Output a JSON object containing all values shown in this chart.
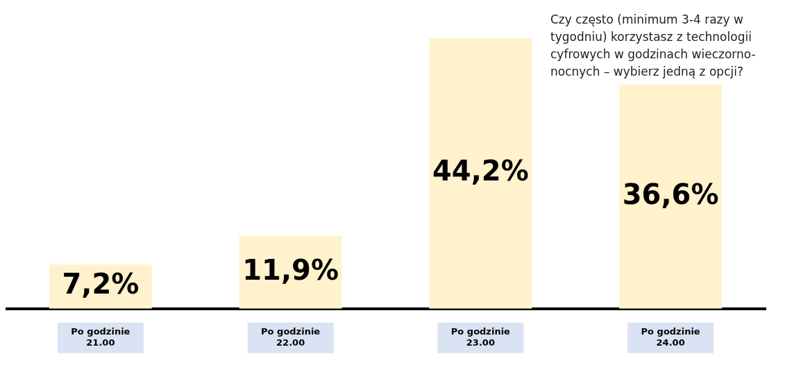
{
  "chart_data": {
    "type": "bar",
    "title": "Czy często (minimum 3-4 razy w tygodniu) korzystasz z technologii cyfrowych w godzinach wieczorno-nocnych – wybierz jedną z opcji?",
    "categories": [
      "Po godzinie 21.00",
      "Po godzinie 22.00",
      "Po godzinie 23.00",
      "Po godzinie 24.00"
    ],
    "values": [
      7.2,
      11.9,
      44.2,
      36.6
    ],
    "value_labels": [
      "7,2%",
      "11,9%",
      "44,2%",
      "36,6%"
    ],
    "color": "#fff2cc",
    "grid": false,
    "legend": false
  }
}
